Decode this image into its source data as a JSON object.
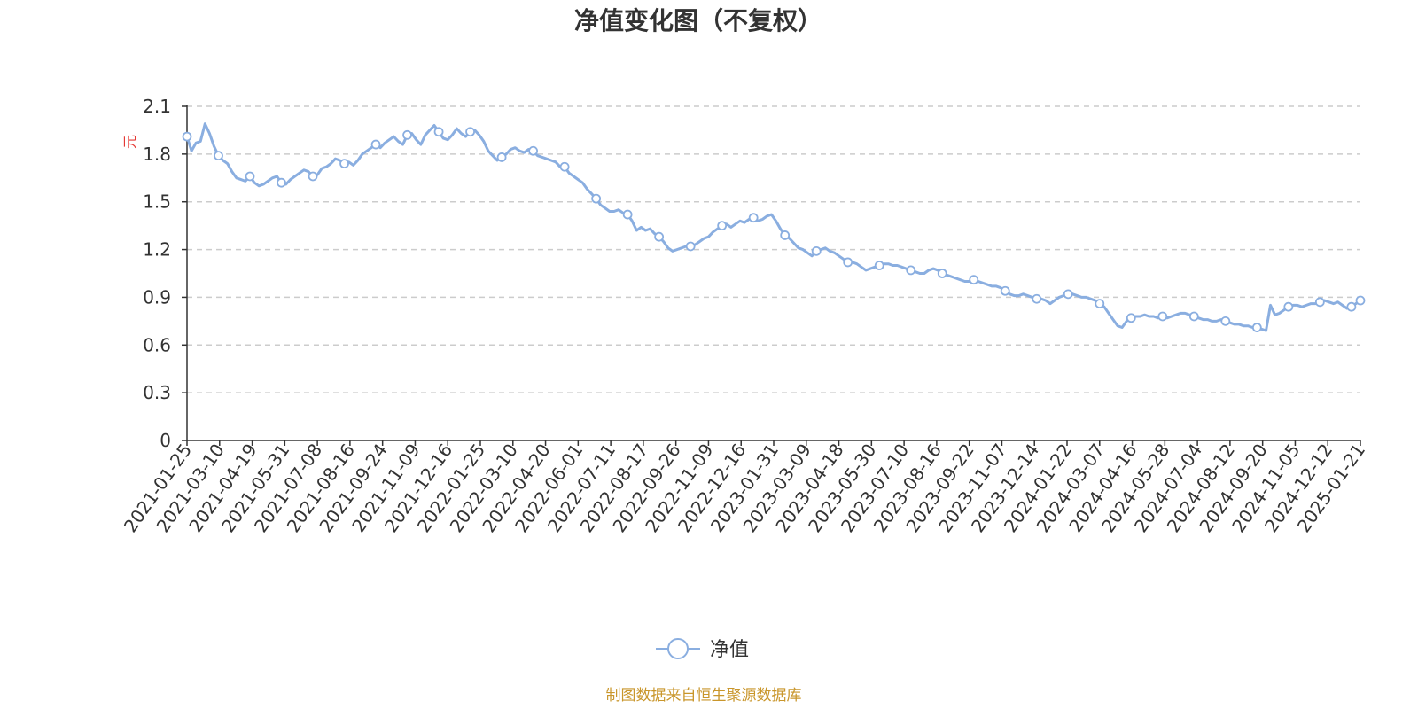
{
  "chart_data": {
    "type": "line",
    "title": "净值变化图（不复权）",
    "ylabel": "元",
    "xlabel": "",
    "ylim": [
      0,
      2.1
    ],
    "yticks": [
      "0",
      "0.3",
      "0.6",
      "0.9",
      "1.2",
      "1.5",
      "1.8",
      "2.1"
    ],
    "grid": true,
    "legend_position": "bottom",
    "line_color": "#8aaee0",
    "source_note": "制图数据来自恒生聚源数据库",
    "x_tick_labels": [
      "2021-01-25",
      "2021-03-10",
      "2021-04-19",
      "2021-05-31",
      "2021-07-08",
      "2021-08-16",
      "2021-09-24",
      "2021-11-09",
      "2021-12-16",
      "2022-01-25",
      "2022-03-10",
      "2022-04-20",
      "2022-06-01",
      "2022-07-11",
      "2022-08-17",
      "2022-09-26",
      "2022-11-09",
      "2022-12-16",
      "2023-01-31",
      "2023-03-09",
      "2023-04-18",
      "2023-05-30",
      "2023-07-10",
      "2023-08-16",
      "2023-09-22",
      "2023-11-07",
      "2023-12-14",
      "2024-01-22",
      "2024-03-07",
      "2024-04-16",
      "2024-05-28",
      "2024-07-04",
      "2024-08-12",
      "2024-09-20",
      "2024-11-05",
      "2024-12-12",
      "2025-01-21"
    ],
    "series": [
      {
        "name": "净值",
        "values": [
          1.91,
          1.82,
          1.87,
          1.88,
          1.99,
          1.93,
          1.85,
          1.79,
          1.76,
          1.74,
          1.69,
          1.65,
          1.64,
          1.63,
          1.66,
          1.62,
          1.6,
          1.61,
          1.63,
          1.65,
          1.66,
          1.62,
          1.61,
          1.64,
          1.66,
          1.68,
          1.7,
          1.69,
          1.66,
          1.67,
          1.71,
          1.72,
          1.74,
          1.77,
          1.76,
          1.74,
          1.75,
          1.73,
          1.76,
          1.8,
          1.82,
          1.84,
          1.86,
          1.84,
          1.87,
          1.89,
          1.91,
          1.88,
          1.86,
          1.92,
          1.93,
          1.89,
          1.86,
          1.92,
          1.95,
          1.98,
          1.94,
          1.9,
          1.89,
          1.92,
          1.96,
          1.93,
          1.91,
          1.94,
          1.95,
          1.92,
          1.88,
          1.82,
          1.79,
          1.76,
          1.78,
          1.8,
          1.83,
          1.84,
          1.82,
          1.81,
          1.83,
          1.82,
          1.79,
          1.78,
          1.77,
          1.76,
          1.75,
          1.72,
          1.72,
          1.68,
          1.66,
          1.64,
          1.62,
          1.58,
          1.55,
          1.52,
          1.48,
          1.46,
          1.44,
          1.44,
          1.45,
          1.43,
          1.42,
          1.38,
          1.32,
          1.34,
          1.32,
          1.33,
          1.3,
          1.28,
          1.25,
          1.21,
          1.19,
          1.2,
          1.21,
          1.22,
          1.22,
          1.23,
          1.25,
          1.27,
          1.28,
          1.31,
          1.33,
          1.35,
          1.36,
          1.34,
          1.36,
          1.38,
          1.37,
          1.39,
          1.4,
          1.38,
          1.39,
          1.41,
          1.42,
          1.38,
          1.33,
          1.29,
          1.27,
          1.24,
          1.21,
          1.2,
          1.18,
          1.16,
          1.19,
          1.2,
          1.21,
          1.19,
          1.18,
          1.16,
          1.14,
          1.12,
          1.12,
          1.11,
          1.09,
          1.07,
          1.08,
          1.09,
          1.1,
          1.11,
          1.11,
          1.1,
          1.1,
          1.09,
          1.08,
          1.07,
          1.06,
          1.05,
          1.05,
          1.07,
          1.08,
          1.07,
          1.05,
          1.04,
          1.03,
          1.02,
          1.01,
          1.0,
          1.0,
          1.01,
          1.0,
          0.99,
          0.98,
          0.97,
          0.97,
          0.96,
          0.94,
          0.92,
          0.91,
          0.91,
          0.92,
          0.91,
          0.9,
          0.89,
          0.89,
          0.88,
          0.86,
          0.88,
          0.9,
          0.91,
          0.92,
          0.92,
          0.91,
          0.9,
          0.9,
          0.89,
          0.88,
          0.86,
          0.84,
          0.8,
          0.76,
          0.72,
          0.71,
          0.75,
          0.77,
          0.78,
          0.78,
          0.79,
          0.78,
          0.78,
          0.77,
          0.78,
          0.77,
          0.78,
          0.79,
          0.8,
          0.8,
          0.79,
          0.78,
          0.77,
          0.76,
          0.76,
          0.75,
          0.75,
          0.76,
          0.75,
          0.74,
          0.73,
          0.73,
          0.72,
          0.72,
          0.71,
          0.71,
          0.7,
          0.69,
          0.85,
          0.79,
          0.8,
          0.82,
          0.84,
          0.85,
          0.85,
          0.84,
          0.85,
          0.86,
          0.86,
          0.87,
          0.88,
          0.87,
          0.86,
          0.87,
          0.85,
          0.83,
          0.84,
          0.86,
          0.88
        ]
      }
    ]
  }
}
